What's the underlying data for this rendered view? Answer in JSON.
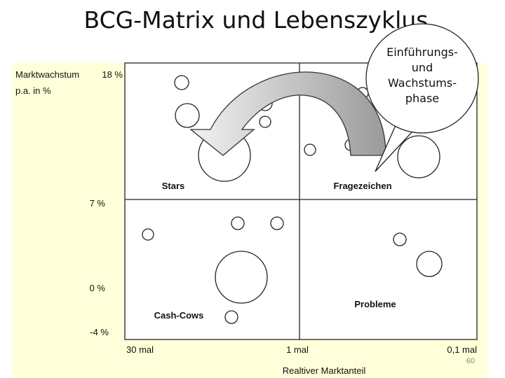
{
  "title": "BCG-Matrix und Lebenszyklus",
  "y_axis": {
    "label_line1": "Marktwachstum",
    "label_line2": "p.a. in %",
    "ticks": [
      "18 %",
      "7 %",
      "0 %",
      "-4 %"
    ]
  },
  "x_axis": {
    "label": "Realtiver Marktanteil",
    "ticks": [
      "30 mal",
      "1 mal",
      "0,1 mal"
    ]
  },
  "quadrants": {
    "top_left": "Stars",
    "top_right": "Fragezeichen",
    "bottom_left": "Cash-Cows",
    "bottom_right": "Probleme"
  },
  "callout": {
    "lines": [
      "Einführungs-",
      "und",
      "Wachstums-",
      "phase"
    ]
  },
  "page_number": "60"
}
